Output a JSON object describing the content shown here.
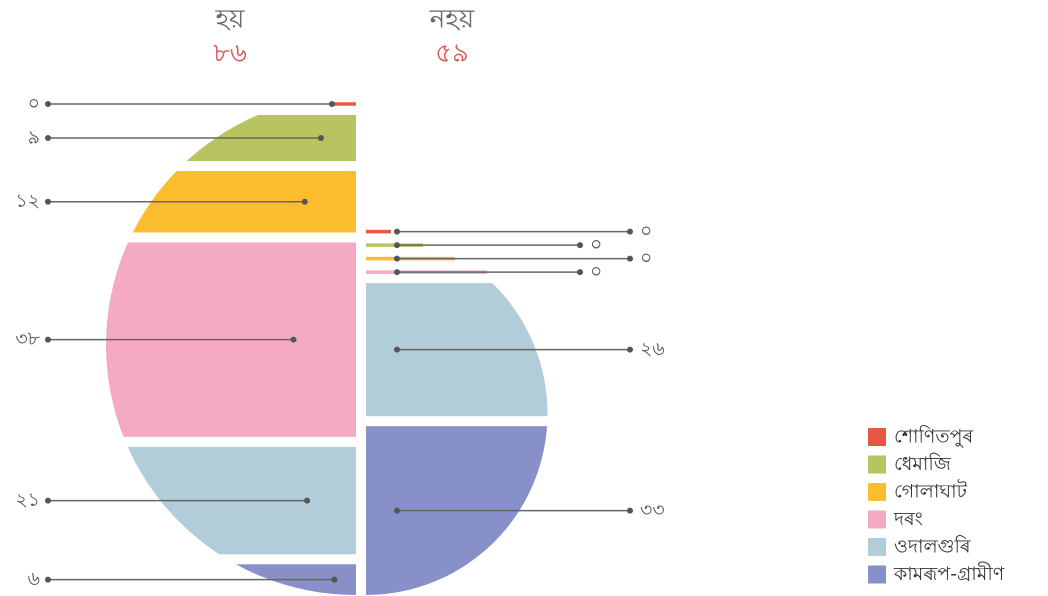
{
  "chart_data": {
    "type": "split-pie",
    "categories": [
      "শোণিতপুৰ",
      "ধেমাজি",
      "গোলাঘাট",
      "দৰং",
      "ওদালগুৰি",
      "কামৰূপ-গ্ৰামীণ"
    ],
    "colors": [
      "#e8573f",
      "#b7c460",
      "#fbbd2e",
      "#f4aac5",
      "#b0cdd9",
      "#8790c8"
    ],
    "series": [
      {
        "name": "হয়",
        "total_label": "৮৬",
        "values": [
          0,
          9,
          12,
          38,
          21,
          6
        ],
        "value_labels": [
          "০",
          "৯",
          "১২",
          "৩৮",
          "২১",
          "৬"
        ]
      },
      {
        "name": "নহয়",
        "total_label": "৫৯",
        "values": [
          0,
          0,
          0,
          0,
          26,
          33
        ],
        "value_labels": [
          "০",
          "০",
          "০",
          "০",
          "২৬",
          "৩৩"
        ]
      }
    ],
    "legend": "bottom-right"
  }
}
